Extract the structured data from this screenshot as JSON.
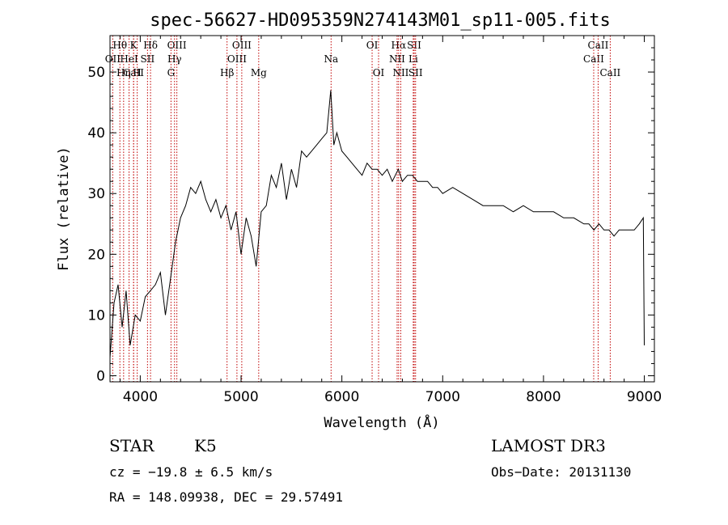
{
  "chart_data": {
    "type": "line",
    "title": "spec-56627-HD095359N274143M01_sp11-005.fits",
    "xlabel": "Wavelength (Å)",
    "ylabel": "Flux (relative)",
    "xlim": [
      3700,
      9100
    ],
    "ylim": [
      -1,
      56
    ],
    "xticks": [
      4000,
      5000,
      6000,
      7000,
      8000,
      9000
    ],
    "yticks": [
      0,
      10,
      20,
      30,
      40,
      50
    ],
    "series": [
      {
        "name": "spectrum",
        "x": [
          3700,
          3740,
          3780,
          3820,
          3860,
          3900,
          3950,
          4000,
          4050,
          4100,
          4150,
          4200,
          4250,
          4300,
          4350,
          4400,
          4450,
          4500,
          4550,
          4600,
          4650,
          4700,
          4750,
          4800,
          4850,
          4900,
          4950,
          5000,
          5050,
          5100,
          5150,
          5200,
          5250,
          5300,
          5350,
          5400,
          5450,
          5500,
          5550,
          5600,
          5650,
          5700,
          5750,
          5800,
          5850,
          5890,
          5920,
          5950,
          6000,
          6050,
          6100,
          6150,
          6200,
          6250,
          6300,
          6350,
          6400,
          6450,
          6500,
          6560,
          6600,
          6650,
          6700,
          6750,
          6800,
          6850,
          6900,
          6950,
          7000,
          7100,
          7200,
          7300,
          7400,
          7500,
          7600,
          7700,
          7800,
          7900,
          8000,
          8100,
          8200,
          8300,
          8400,
          8450,
          8500,
          8550,
          8600,
          8650,
          8700,
          8750,
          8800,
          8850,
          8900,
          8950,
          8990,
          9000
        ],
        "y": [
          3,
          12,
          15,
          8,
          14,
          5,
          10,
          9,
          13,
          14,
          15,
          17,
          10,
          16,
          22,
          26,
          28,
          31,
          30,
          32,
          29,
          27,
          29,
          26,
          28,
          24,
          27,
          20,
          26,
          23,
          18,
          27,
          28,
          33,
          31,
          35,
          29,
          34,
          31,
          37,
          36,
          37,
          38,
          39,
          40,
          47,
          38,
          40,
          37,
          36,
          35,
          34,
          33,
          35,
          34,
          34,
          33,
          34,
          32,
          34,
          32,
          33,
          33,
          32,
          32,
          32,
          31,
          31,
          30,
          31,
          30,
          29,
          28,
          28,
          28,
          27,
          28,
          27,
          27,
          27,
          26,
          26,
          25,
          25,
          24,
          25,
          24,
          24,
          23,
          24,
          24,
          24,
          24,
          25,
          26,
          5
        ]
      }
    ],
    "line_markers": [
      {
        "label": "CaII",
        "wl": 3934,
        "row": 3
      },
      {
        "label": "H",
        "wl": 3970,
        "row": 3
      },
      {
        "label": "Hη",
        "wl": 3835,
        "row": 3
      },
      {
        "label": "Hθ",
        "wl": 3798,
        "row": 1
      },
      {
        "label": "K",
        "wl": 3934,
        "row": 1
      },
      {
        "label": "HeI",
        "wl": 3889,
        "row": 2
      },
      {
        "label": "OII",
        "wl": 3727,
        "row": 2
      },
      {
        "label": "SII",
        "wl": 4072,
        "row": 2
      },
      {
        "label": "Hδ",
        "wl": 4102,
        "row": 1
      },
      {
        "label": "OIII",
        "wl": 4363,
        "row": 1
      },
      {
        "label": "Hγ",
        "wl": 4340,
        "row": 2
      },
      {
        "label": "G",
        "wl": 4305,
        "row": 3
      },
      {
        "label": "Hβ",
        "wl": 4861,
        "row": 3
      },
      {
        "label": "OIII",
        "wl": 4959,
        "row": 2
      },
      {
        "label": "OIII",
        "wl": 5007,
        "row": 1
      },
      {
        "label": "Mg",
        "wl": 5175,
        "row": 3
      },
      {
        "label": "Na",
        "wl": 5893,
        "row": 2
      },
      {
        "label": "OI",
        "wl": 6300,
        "row": 1
      },
      {
        "label": "OI",
        "wl": 6364,
        "row": 3
      },
      {
        "label": "Hα",
        "wl": 6563,
        "row": 1
      },
      {
        "label": "NII",
        "wl": 6548,
        "row": 2
      },
      {
        "label": "NII",
        "wl": 6584,
        "row": 3
      },
      {
        "label": "SII",
        "wl": 6717,
        "row": 1
      },
      {
        "label": "Li",
        "wl": 6708,
        "row": 2
      },
      {
        "label": "SII",
        "wl": 6731,
        "row": 3
      },
      {
        "label": "CaII",
        "wl": 8498,
        "row": 2
      },
      {
        "label": "CaII",
        "wl": 8542,
        "row": 1
      },
      {
        "label": "CaII",
        "wl": 8662,
        "row": 3
      }
    ]
  },
  "info": {
    "class": "STAR",
    "subclass": "K5",
    "survey": "LAMOST DR3",
    "cz": "cz = −19.8 ± 6.5 km/s",
    "obs_date": "Obs−Date: 20131130",
    "radec": "RA = 148.09938, DEC =  29.57491"
  }
}
